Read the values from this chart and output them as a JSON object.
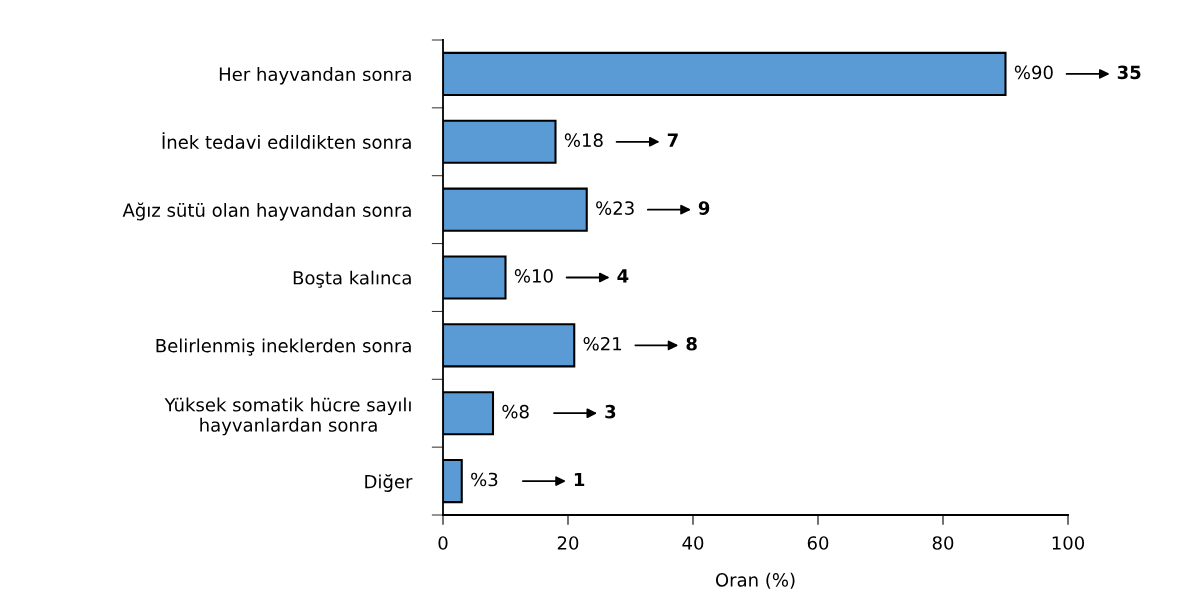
{
  "chart_data": {
    "type": "bar",
    "orientation": "horizontal",
    "xlabel": "Oran (%)",
    "categories": [
      "Her hayvandan sonra",
      "İnek tedavi edildikten sonra",
      "Ağız sütü olan hayvandan sonra",
      "Boşta kalınca",
      "Belirlenmiş ineklerden sonra",
      "Yüksek somatik hücre sayılı\nhayvanlardan sonra",
      "Diğer"
    ],
    "values": [
      90,
      18,
      23,
      10,
      21,
      8,
      3
    ],
    "value_labels": [
      "%90",
      "%18",
      "%23",
      "%10",
      "%21",
      "%8",
      "%3"
    ],
    "color": "#5b9bd5",
    "xlim": [
      0,
      100
    ],
    "xticks": [
      0,
      20,
      40,
      60,
      80,
      100
    ],
    "grid": false,
    "legend": false,
    "annotations": [
      "35",
      "7",
      "9",
      "4",
      "8",
      "3",
      "1"
    ]
  }
}
